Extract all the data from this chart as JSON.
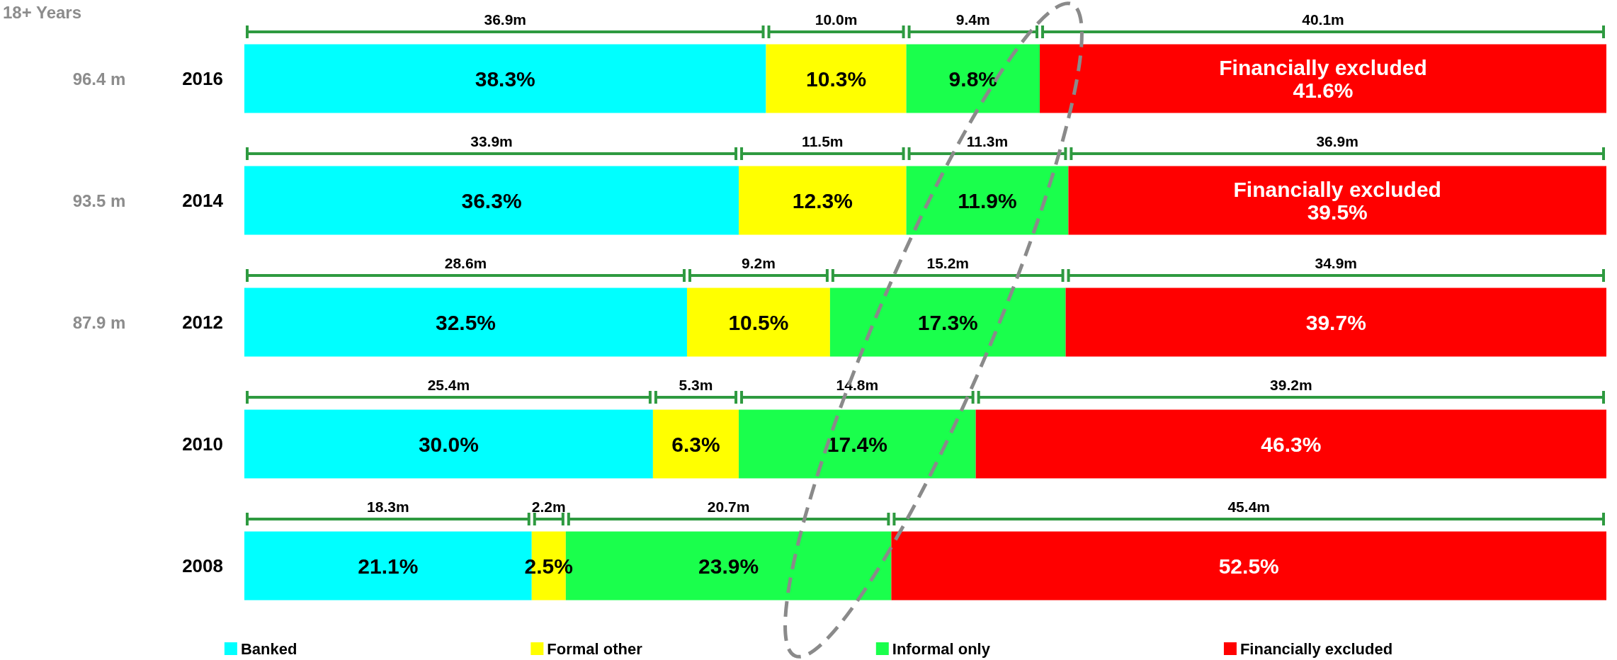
{
  "chart_data": {
    "type": "bar",
    "orientation": "horizontal",
    "stacked": true,
    "categories": [
      "2016",
      "2014",
      "2012",
      "2010",
      "2008"
    ],
    "xlim": [
      0,
      100
    ],
    "tick_labels": "y",
    "legend": "bottom",
    "series": [
      {
        "name": "Banked",
        "color": "#00ffff",
        "values": [
          38.3,
          36.3,
          32.5,
          30.0,
          21.1
        ],
        "value_labels": [
          "38.3%",
          "36.3%",
          "32.5%",
          "30.0%",
          "21.1%"
        ]
      },
      {
        "name": "Formal other",
        "color": "#ffff00",
        "values": [
          10.3,
          12.3,
          10.5,
          6.3,
          2.5
        ],
        "value_labels": [
          "10.3%",
          "12.3%",
          "10.5%",
          "6.3%",
          "2.5%"
        ]
      },
      {
        "name": "Informal only",
        "color": "#1aff4c",
        "values": [
          9.8,
          11.9,
          17.3,
          17.4,
          23.9
        ],
        "value_labels": [
          "9.8%",
          "11.9%",
          "17.3%",
          "17.4%",
          "23.9%"
        ]
      },
      {
        "name": "Financially excluded",
        "color": "#ff0000",
        "values": [
          41.6,
          39.5,
          39.7,
          46.3,
          52.5
        ],
        "value_labels": [
          "Financially excluded\n41.6%",
          "Financially excluded\n39.5%",
          "39.7%",
          "46.3%",
          "52.5%"
        ]
      }
    ],
    "annotations": [
      "18+ Years",
      "96.4 m",
      "93.5 m",
      "87.9 m",
      "36.9m",
      "10.0m",
      "9.4m",
      "40.1m",
      "33.9m",
      "11.5m",
      "11.3m",
      "36.9m",
      "28.6m",
      "9.2m",
      "15.2m",
      "34.9m",
      "25.4m",
      "5.3m",
      "14.8m",
      "39.2m",
      "18.3m",
      "2.2m",
      "20.7m",
      "45.4m"
    ]
  }
}
